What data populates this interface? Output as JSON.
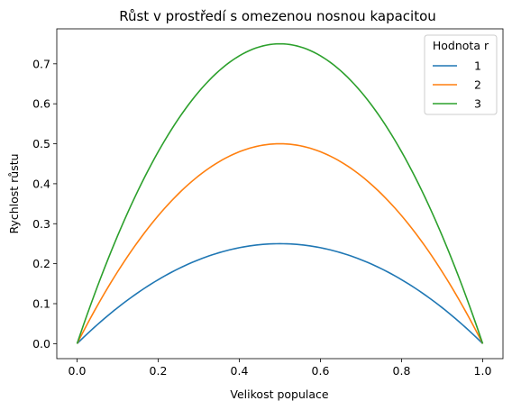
{
  "chart_data": {
    "type": "line",
    "title": "Růst v prostředí s omezenou nosnou kapacitou",
    "xlabel": "Velikost populace",
    "ylabel": "Rychlost růstu",
    "xlim": [
      -0.05,
      1.05
    ],
    "ylim": [
      -0.0375,
      0.7875
    ],
    "xticks": [
      0.0,
      0.2,
      0.4,
      0.6,
      0.8,
      1.0
    ],
    "xtick_labels": [
      "0.0",
      "0.2",
      "0.4",
      "0.6",
      "0.8",
      "1.0"
    ],
    "yticks": [
      0.0,
      0.1,
      0.2,
      0.3,
      0.4,
      0.5,
      0.6,
      0.7
    ],
    "ytick_labels": [
      "0.0",
      "0.1",
      "0.2",
      "0.3",
      "0.4",
      "0.5",
      "0.6",
      "0.7"
    ],
    "grid": false,
    "legend": {
      "title": "Hodnota r",
      "position": "top-right"
    },
    "x": [
      0.0,
      0.05,
      0.1,
      0.15,
      0.2,
      0.25,
      0.3,
      0.35,
      0.4,
      0.45,
      0.5,
      0.55,
      0.6,
      0.65,
      0.7,
      0.75,
      0.8,
      0.85,
      0.9,
      0.95,
      1.0
    ],
    "series": [
      {
        "name": "1",
        "color": "#1f77b4",
        "values": [
          0.0,
          0.0475,
          0.09,
          0.1275,
          0.16,
          0.1875,
          0.21,
          0.2275,
          0.24,
          0.2475,
          0.25,
          0.2475,
          0.24,
          0.2275,
          0.21,
          0.1875,
          0.16,
          0.1275,
          0.09,
          0.0475,
          0.0
        ]
      },
      {
        "name": "2",
        "color": "#ff7f0e",
        "values": [
          0.0,
          0.095,
          0.18,
          0.255,
          0.32,
          0.375,
          0.42,
          0.455,
          0.48,
          0.495,
          0.5,
          0.495,
          0.48,
          0.455,
          0.42,
          0.375,
          0.32,
          0.255,
          0.18,
          0.095,
          0.0
        ]
      },
      {
        "name": "3",
        "color": "#2ca02c",
        "values": [
          0.0,
          0.1425,
          0.27,
          0.3825,
          0.48,
          0.5625,
          0.63,
          0.6825,
          0.72,
          0.7425,
          0.75,
          0.7425,
          0.72,
          0.6825,
          0.63,
          0.5625,
          0.48,
          0.3825,
          0.27,
          0.1425,
          0.0
        ]
      }
    ]
  }
}
